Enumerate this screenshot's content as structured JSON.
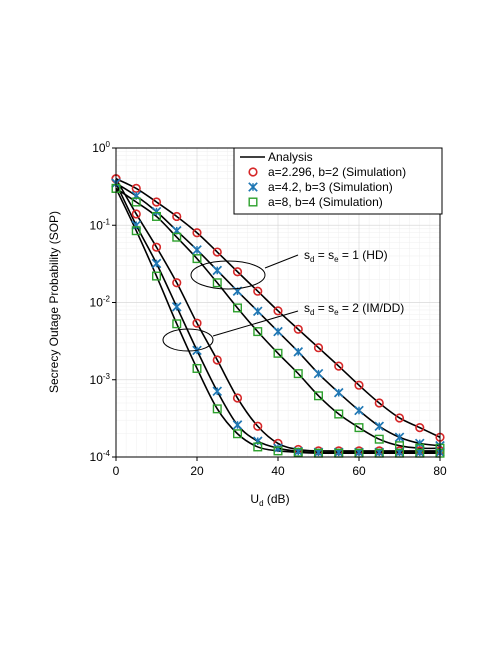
{
  "chart_data": {
    "type": "line",
    "xlabel_main": "U",
    "xlabel_sub": "d",
    "xlabel_unit": "(dB)",
    "ylabel": "Secrecy Outage Probability (SOP)",
    "xlim": [
      0,
      80
    ],
    "ylim": [
      0.0001,
      1
    ],
    "yscale": "log",
    "grid": true,
    "legend_position": "top-right",
    "xticks": [
      "0",
      "20",
      "40",
      "60",
      "80"
    ],
    "yticks": [
      {
        "base": "10",
        "exp": "0",
        "value": 1
      },
      {
        "base": "10",
        "exp": "-1",
        "value": 0.1
      },
      {
        "base": "10",
        "exp": "-2",
        "value": 0.01
      },
      {
        "base": "10",
        "exp": "-3",
        "value": 0.001
      },
      {
        "base": "10",
        "exp": "-4",
        "value": 0.0001
      }
    ],
    "legend": [
      {
        "label": "Analysis",
        "marker": "line",
        "color": "#000000"
      },
      {
        "label": "a=2.296, b=2 (Simulation)",
        "marker": "circle",
        "color": "#d62728"
      },
      {
        "label": "a=4.2, b=3 (Simulation)",
        "marker": "star",
        "color": "#1f77b4"
      },
      {
        "label": "a=8, b=4 (Simulation)",
        "marker": "square",
        "color": "#2ca02c"
      }
    ],
    "annotations": [
      {
        "prefix": "s",
        "sub1": "d",
        "mid": " = s",
        "sub2": "e",
        "suffix": " = 1 (HD)"
      },
      {
        "prefix": "s",
        "sub1": "d",
        "mid": " = s",
        "sub2": "e",
        "suffix": " = 2 (IM/DD)"
      }
    ],
    "x": [
      0,
      5,
      10,
      15,
      20,
      25,
      30,
      35,
      40,
      45,
      50,
      55,
      60,
      65,
      70,
      75,
      80
    ],
    "series": [
      {
        "group": "HD",
        "marker": "circle",
        "color": "#d62728",
        "values": [
          0.4,
          0.3,
          0.2,
          0.13,
          0.08,
          0.045,
          0.025,
          0.014,
          0.0078,
          0.0045,
          0.0026,
          0.0015,
          0.00085,
          0.0005,
          0.00032,
          0.00024,
          0.00018
        ]
      },
      {
        "group": "HD",
        "marker": "star",
        "color": "#1f77b4",
        "values": [
          0.35,
          0.24,
          0.15,
          0.085,
          0.048,
          0.026,
          0.014,
          0.0077,
          0.0042,
          0.0023,
          0.0012,
          0.00068,
          0.0004,
          0.00025,
          0.00018,
          0.00015,
          0.00014
        ]
      },
      {
        "group": "HD",
        "marker": "square",
        "color": "#2ca02c",
        "values": [
          0.3,
          0.2,
          0.13,
          0.07,
          0.037,
          0.018,
          0.0085,
          0.0042,
          0.0022,
          0.0012,
          0.00062,
          0.00036,
          0.00024,
          0.00017,
          0.00014,
          0.00013,
          0.00013
        ]
      },
      {
        "group": "IM/DD",
        "marker": "circle",
        "color": "#d62728",
        "values": [
          0.4,
          0.14,
          0.052,
          0.018,
          0.0054,
          0.0018,
          0.00058,
          0.00025,
          0.00015,
          0.000125,
          0.00012,
          0.00012,
          0.00012,
          0.00012,
          0.00012,
          0.00012,
          0.00012
        ]
      },
      {
        "group": "IM/DD",
        "marker": "star",
        "color": "#1f77b4",
        "values": [
          0.35,
          0.1,
          0.032,
          0.0088,
          0.0024,
          0.00071,
          0.00026,
          0.00016,
          0.00013,
          0.000118,
          0.000115,
          0.000115,
          0.000115,
          0.000115,
          0.000115,
          0.000115,
          0.000115
        ]
      },
      {
        "group": "IM/DD",
        "marker": "square",
        "color": "#2ca02c",
        "values": [
          0.3,
          0.085,
          0.022,
          0.0053,
          0.0014,
          0.00042,
          0.0002,
          0.000135,
          0.00012,
          0.000115,
          0.000112,
          0.000112,
          0.000112,
          0.000112,
          0.000112,
          0.000112,
          0.000112
        ]
      }
    ]
  }
}
